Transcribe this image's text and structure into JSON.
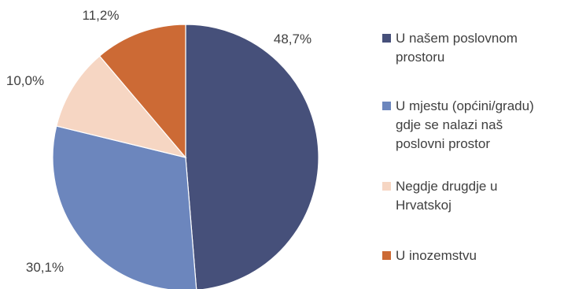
{
  "chart_data": {
    "type": "pie",
    "categories": [
      "U našem poslovnom prostoru",
      "U mjestu (općini/gradu) gdje se nalazi naš poslovni prostor",
      "Negdje drugdje u Hrvatskoj",
      "U inozemstvu"
    ],
    "values": [
      48.7,
      30.1,
      10.0,
      11.2
    ],
    "data_labels": [
      "48,7%",
      "30,1%",
      "10,0%",
      "11,2%"
    ],
    "colors": [
      "#46507a",
      "#6c86bd",
      "#f6d6c3",
      "#cc6a35"
    ],
    "start_angle": "12 o'clock",
    "direction": "clockwise",
    "legend_position": "right"
  },
  "legend": {
    "items": [
      {
        "label": "U našem poslovnom\nprostoru",
        "color": "#46507a"
      },
      {
        "label": "U mjestu (općini/gradu)\ngdje se nalazi naš\nposlovni prostor",
        "color": "#6c86bd"
      },
      {
        "label": "Negdje drugdje u\nHrvatskoj",
        "color": "#f6d6c3"
      },
      {
        "label": "U inozemstvu",
        "color": "#cc6a35"
      }
    ]
  }
}
